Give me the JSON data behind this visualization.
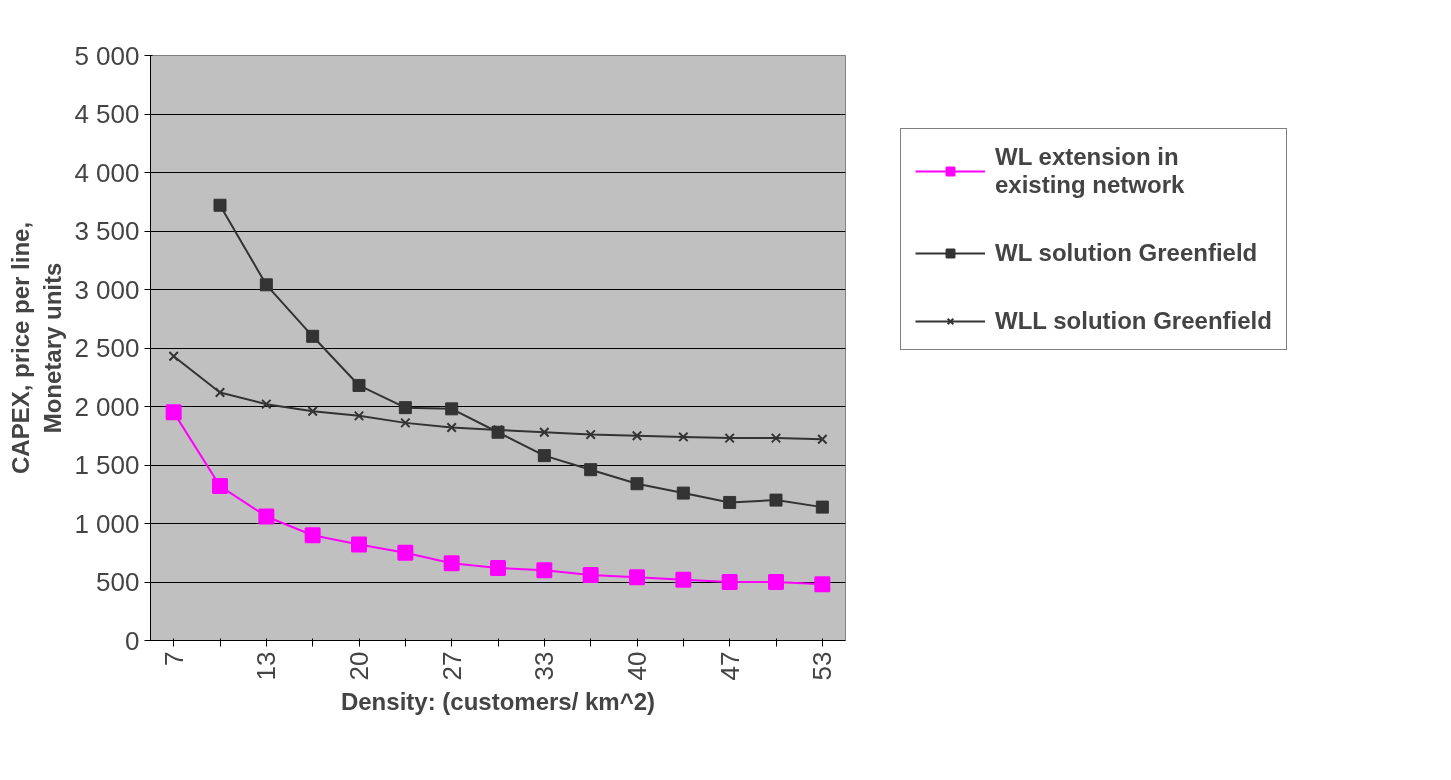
{
  "chart_data": {
    "type": "line",
    "xlabel": "Density: (customers/ km^2)",
    "ylabel": "CAPEX, price per line,\nMonetary units",
    "categories": [
      "7",
      null,
      "13",
      null,
      "20",
      null,
      "27",
      null,
      "33",
      null,
      "40",
      null,
      "47",
      null,
      "53"
    ],
    "series": [
      {
        "name": "WL extension in\nexisting network",
        "color": "#ff00ff",
        "marker": "square",
        "values": [
          1950,
          1320,
          1060,
          900,
          820,
          750,
          660,
          620,
          600,
          560,
          540,
          520,
          500,
          500,
          480
        ]
      },
      {
        "name": "WL solution Greenfield",
        "color": "#333333",
        "marker": "square",
        "values": [
          null,
          3720,
          3040,
          2600,
          2180,
          1990,
          1980,
          1780,
          1580,
          1460,
          1340,
          1260,
          1180,
          1200,
          1140
        ]
      },
      {
        "name": "WLL solution Greenfield",
        "color": "#333333",
        "marker": "cross",
        "values": [
          2430,
          2120,
          2020,
          1960,
          1920,
          1860,
          1820,
          1800,
          1780,
          1760,
          1750,
          1740,
          1730,
          1730,
          1720
        ]
      }
    ],
    "ylim": [
      0,
      5000
    ],
    "yticks": [
      0,
      {
        "value": 500,
        "label": "500"
      },
      {
        "value": 1000,
        "label": "1 000"
      },
      {
        "value": 1500,
        "label": "1 500"
      },
      {
        "value": 2000,
        "label": "2 000"
      },
      {
        "value": 2500,
        "label": "2 500"
      },
      {
        "value": 3000,
        "label": "3 000"
      },
      {
        "value": 3500,
        "label": "3 500"
      },
      {
        "value": 4000,
        "label": "4 000"
      },
      {
        "value": 4500,
        "label": "4 500"
      },
      {
        "value": 5000,
        "label": "5 000"
      }
    ],
    "grid": "y",
    "legend": "right"
  }
}
